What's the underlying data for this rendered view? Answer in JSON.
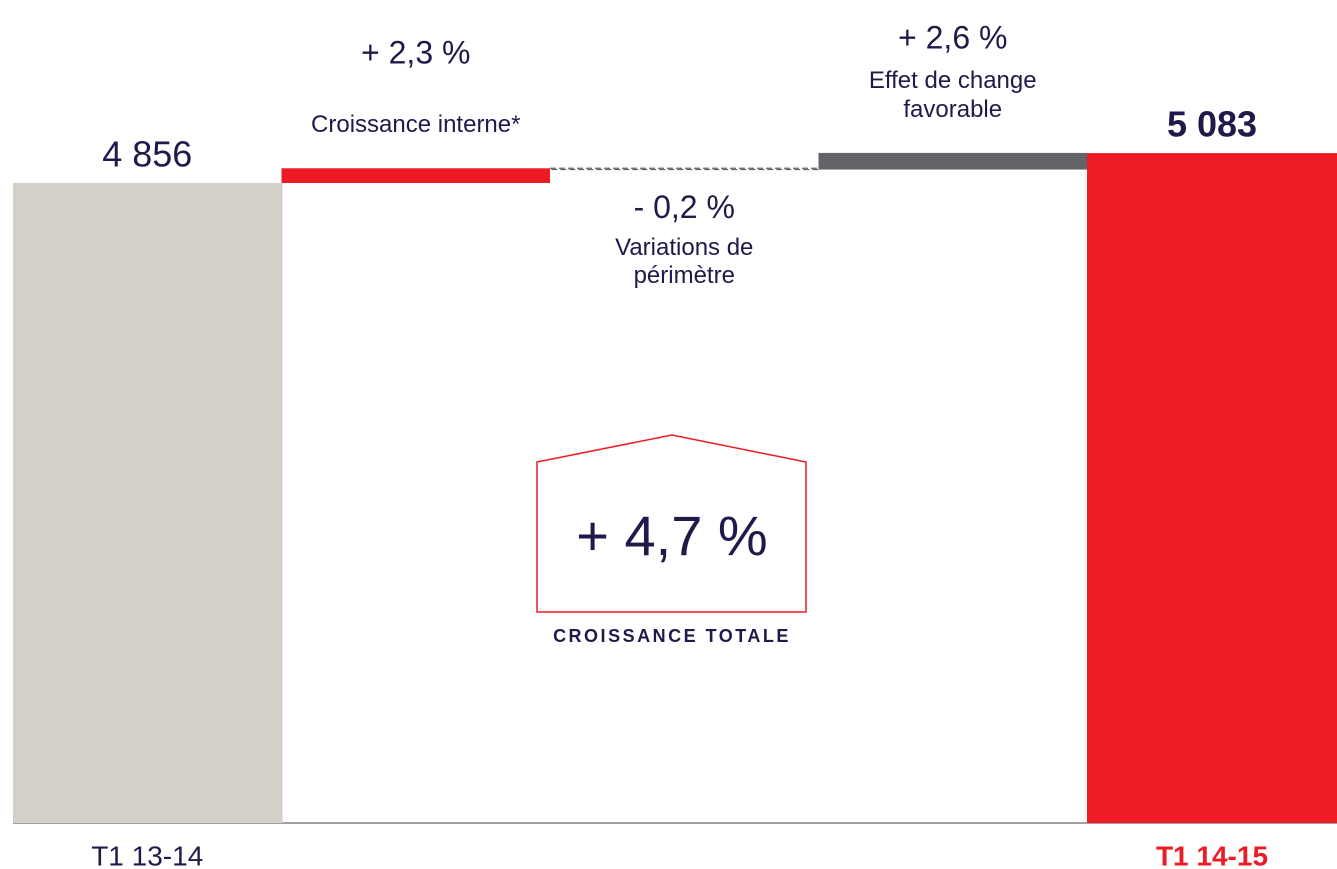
{
  "chart_data": {
    "type": "waterfall",
    "totals": [
      {
        "name": "T1 13-14",
        "value": 4856,
        "value_label": "4 856",
        "color": "#d3d0c7"
      },
      {
        "name": "T1 14-15",
        "value": 5083,
        "value_label": "5 083",
        "color": "#ed1c24"
      }
    ],
    "steps": [
      {
        "name": "Croissance interne*",
        "value": 2.3,
        "value_label": "+ 2,3 %",
        "color": "#ed1c24"
      },
      {
        "name": "Variations de périmètre",
        "value": -0.2,
        "value_label": "- 0,2 %",
        "color": "#636467"
      },
      {
        "name": "Effet de change favorable",
        "value": 2.6,
        "value_label": "+ 2,6 %",
        "color": "#636467"
      }
    ],
    "total_growth": {
      "label": "CROISSANCE TOTALE",
      "value": 4.7,
      "value_label": "+ 4,7 %"
    }
  }
}
